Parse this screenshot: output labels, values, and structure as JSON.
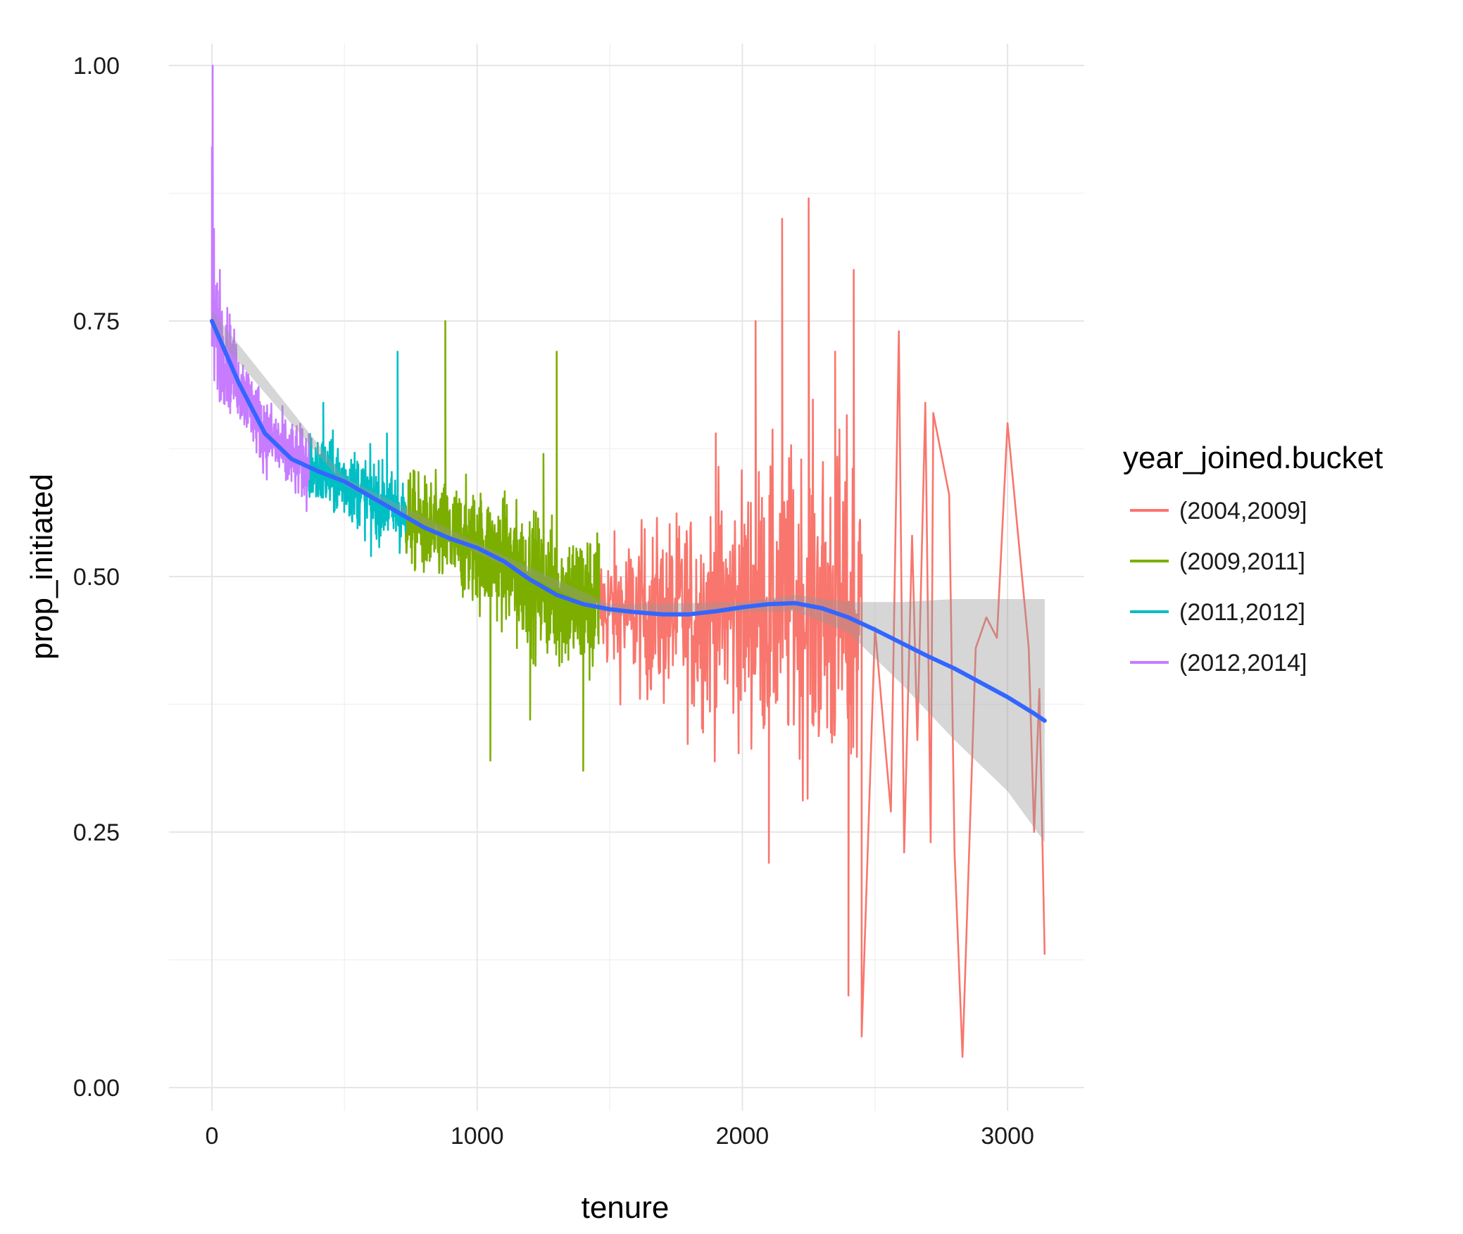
{
  "chart_data": {
    "type": "line",
    "xlabel": "tenure",
    "ylabel": "prop_initiated",
    "xlim": [
      -160,
      3290
    ],
    "ylim": [
      -0.025,
      1.03
    ],
    "x_ticks": [
      0,
      1000,
      2000,
      3000
    ],
    "x_tick_labels": [
      "0",
      "1000",
      "2000",
      "3000"
    ],
    "y_ticks": [
      0,
      0.25,
      0.5,
      0.75,
      1.0
    ],
    "y_tick_labels": [
      "0.00",
      "0.25",
      "0.50",
      "0.75",
      "1.00"
    ],
    "grid": true,
    "legend": {
      "title": "year_joined.bucket",
      "position": "right"
    },
    "series": [
      {
        "name": "(2004,2009]",
        "color": "#F8766D",
        "x_range": [
          1460,
          3140
        ],
        "points": [
          [
            1460,
            0.48
          ],
          [
            1600,
            0.46
          ],
          [
            1800,
            0.45
          ],
          [
            1900,
            0.64
          ],
          [
            2000,
            0.48
          ],
          [
            2050,
            0.75
          ],
          [
            2100,
            0.22
          ],
          [
            2150,
            0.85
          ],
          [
            2200,
            0.46
          ],
          [
            2250,
            0.87
          ],
          [
            2300,
            0.47
          ],
          [
            2350,
            0.72
          ],
          [
            2400,
            0.09
          ],
          [
            2420,
            0.8
          ],
          [
            2450,
            0.05
          ],
          [
            2500,
            0.45
          ],
          [
            2560,
            0.27
          ],
          [
            2590,
            0.74
          ],
          [
            2610,
            0.23
          ],
          [
            2640,
            0.54
          ],
          [
            2660,
            0.34
          ],
          [
            2690,
            0.67
          ],
          [
            2710,
            0.24
          ],
          [
            2720,
            0.66
          ],
          [
            2780,
            0.58
          ],
          [
            2800,
            0.23
          ],
          [
            2830,
            0.03
          ],
          [
            2880,
            0.43
          ],
          [
            2920,
            0.46
          ],
          [
            2960,
            0.44
          ],
          [
            3000,
            0.65
          ],
          [
            3080,
            0.43
          ],
          [
            3100,
            0.25
          ],
          [
            3120,
            0.39
          ],
          [
            3140,
            0.13
          ]
        ]
      },
      {
        "name": "(2009,2011]",
        "color": "#7CAE00",
        "x_range": [
          730,
          1460
        ],
        "points": [
          [
            730,
            0.57
          ],
          [
            800,
            0.55
          ],
          [
            880,
            0.75
          ],
          [
            950,
            0.5
          ],
          [
            1000,
            0.56
          ],
          [
            1050,
            0.32
          ],
          [
            1100,
            0.5
          ],
          [
            1150,
            0.43
          ],
          [
            1200,
            0.36
          ],
          [
            1250,
            0.62
          ],
          [
            1300,
            0.72
          ],
          [
            1350,
            0.44
          ],
          [
            1400,
            0.31
          ],
          [
            1460,
            0.47
          ]
        ]
      },
      {
        "name": "(2011,2012]",
        "color": "#00BFC4",
        "x_range": [
          365,
          730
        ],
        "points": [
          [
            365,
            0.62
          ],
          [
            420,
            0.67
          ],
          [
            480,
            0.58
          ],
          [
            540,
            0.6
          ],
          [
            600,
            0.52
          ],
          [
            660,
            0.64
          ],
          [
            700,
            0.72
          ],
          [
            730,
            0.57
          ]
        ]
      },
      {
        "name": "(2012,2014]",
        "color": "#C77CFF",
        "x_range": [
          0,
          365
        ],
        "points": [
          [
            0,
            0.92
          ],
          [
            3,
            1.0
          ],
          [
            8,
            0.84
          ],
          [
            30,
            0.8
          ],
          [
            80,
            0.73
          ],
          [
            150,
            0.68
          ],
          [
            220,
            0.65
          ],
          [
            300,
            0.62
          ],
          [
            365,
            0.64
          ]
        ]
      }
    ],
    "smooth": {
      "color": "#3366FF",
      "points": [
        [
          0,
          0.75
        ],
        [
          100,
          0.69
        ],
        [
          200,
          0.64
        ],
        [
          300,
          0.615
        ],
        [
          400,
          0.603
        ],
        [
          500,
          0.593
        ],
        [
          600,
          0.578
        ],
        [
          700,
          0.563
        ],
        [
          800,
          0.548
        ],
        [
          900,
          0.537
        ],
        [
          1000,
          0.528
        ],
        [
          1100,
          0.515
        ],
        [
          1200,
          0.497
        ],
        [
          1300,
          0.482
        ],
        [
          1400,
          0.473
        ],
        [
          1500,
          0.468
        ],
        [
          1600,
          0.465
        ],
        [
          1700,
          0.463
        ],
        [
          1800,
          0.463
        ],
        [
          1900,
          0.466
        ],
        [
          2000,
          0.47
        ],
        [
          2100,
          0.473
        ],
        [
          2200,
          0.474
        ],
        [
          2300,
          0.469
        ],
        [
          2400,
          0.46
        ],
        [
          2500,
          0.448
        ],
        [
          2600,
          0.435
        ],
        [
          2700,
          0.422
        ],
        [
          2800,
          0.41
        ],
        [
          2900,
          0.396
        ],
        [
          3000,
          0.382
        ],
        [
          3100,
          0.366
        ],
        [
          3140,
          0.359
        ]
      ],
      "ci_lower": [
        [
          0,
          0.74
        ],
        [
          500,
          0.589
        ],
        [
          1000,
          0.523
        ],
        [
          1500,
          0.463
        ],
        [
          2000,
          0.465
        ],
        [
          2200,
          0.466
        ],
        [
          2400,
          0.445
        ],
        [
          2600,
          0.395
        ],
        [
          2800,
          0.34
        ],
        [
          3000,
          0.29
        ],
        [
          3140,
          0.24
        ]
      ],
      "ci_upper": [
        [
          0,
          0.76
        ],
        [
          500,
          0.597
        ],
        [
          1000,
          0.533
        ],
        [
          1500,
          0.473
        ],
        [
          2000,
          0.475
        ],
        [
          2200,
          0.482
        ],
        [
          2400,
          0.475
        ],
        [
          2600,
          0.475
        ],
        [
          2800,
          0.478
        ],
        [
          3000,
          0.478
        ],
        [
          3140,
          0.478
        ]
      ]
    }
  }
}
